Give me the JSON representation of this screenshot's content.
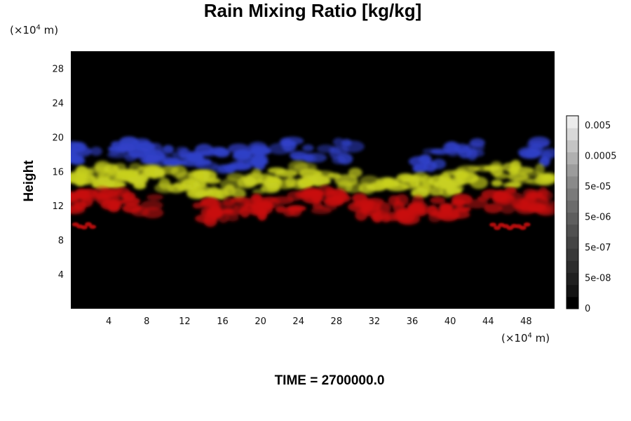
{
  "chart_data": {
    "type": "heatmap",
    "title": "Rain Mixing Ratio [kg/kg]",
    "ylabel": "Height",
    "xlabel": "",
    "x_unit_prefix": "(×10",
    "x_unit_exp": "4",
    "x_unit_suffix": " m)",
    "y_unit_prefix": "(×10",
    "y_unit_exp": "4",
    "y_unit_suffix": " m)",
    "xlim": [
      0,
      51
    ],
    "ylim": [
      0,
      30
    ],
    "x_ticks": [
      "4",
      "8",
      "12",
      "16",
      "20",
      "24",
      "28",
      "32",
      "36",
      "40",
      "44",
      "48"
    ],
    "x_tick_values": [
      4,
      8,
      12,
      16,
      20,
      24,
      28,
      32,
      36,
      40,
      44,
      48
    ],
    "y_ticks": [
      "4",
      "8",
      "12",
      "16",
      "20",
      "24",
      "28"
    ],
    "y_tick_values": [
      4,
      8,
      12,
      16,
      20,
      24,
      28
    ],
    "background_color": "#000000",
    "layers": [
      {
        "color": "#3040c8",
        "height_range": [
          16.5,
          19.5
        ],
        "description_level": "upper"
      },
      {
        "color": "#c8d020",
        "height_range": [
          13.5,
          16.5
        ],
        "description_level": "middle"
      },
      {
        "color": "#c81010",
        "height_range": [
          10.5,
          13.5
        ],
        "description_level": "lower"
      }
    ],
    "colorbar": {
      "labels": [
        "0.005",
        "0.0005",
        "5e-05",
        "5e-06",
        "5e-07",
        "5e-08",
        "0"
      ],
      "levels": 16,
      "colors": [
        "#000000",
        "#141414",
        "#202020",
        "#2c2c2c",
        "#383838",
        "#444444",
        "#505050",
        "#5e5e5e",
        "#6c6c6c",
        "#7a7a7a",
        "#8a8a8a",
        "#9c9c9c",
        "#b0b0b0",
        "#c4c4c4",
        "#d8d8d8",
        "#ececec"
      ]
    },
    "footer": "TIME = 2700000.0"
  }
}
